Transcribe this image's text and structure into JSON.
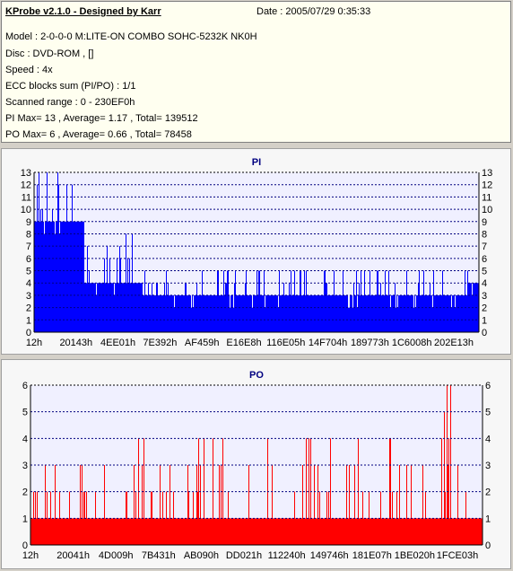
{
  "info": {
    "title": "KProbe v2.1.0 - Designed by Karr",
    "date": "Date : 2005/07/29 0:35:33",
    "lines": [
      "Model : 2-0-0-0 M:LITE-ON COMBO SOHC-5232K NK0H",
      "Disc : DVD-ROM ,  []",
      "Speed : 4x",
      "ECC blocks sum (PI/PO) : 1/1",
      "Scanned range : 0 - 230EF0h",
      "PI Max= 13 , Average= 1.17 , Total= 139512",
      "PO Max= 6 , Average= 0.66 , Total= 78458"
    ]
  },
  "colors": {
    "pi": "#0000ff",
    "po": "#ff0000",
    "plot_bg": "#f0f0ff",
    "grid": "#000080"
  },
  "chart_data": [
    {
      "type": "bar",
      "title": "PI",
      "ylim": [
        0,
        13
      ],
      "yticks": [
        0,
        1,
        2,
        3,
        4,
        5,
        6,
        7,
        8,
        9,
        10,
        11,
        12,
        13
      ],
      "xlim": [
        0,
        2289392
      ],
      "xtick_labels": [
        "12h",
        "20143h",
        "4EE01h",
        "7E392h",
        "AF459h",
        "E16E8h",
        "116E05h",
        "14F704h",
        "189773h",
        "1C6008h",
        "202E13h"
      ],
      "series": [
        {
          "segments": [
            {
              "x_range": [
                0,
                260000
              ],
              "max": 13,
              "base": 9
            },
            {
              "x_range": [
                260000,
                560000
              ],
              "max": 8,
              "base": 4
            },
            {
              "x_range": [
                560000,
                2230000
              ],
              "max": 5,
              "base": 3
            },
            {
              "x_range": [
                2230000,
                2289392
              ],
              "max": 6,
              "base": 4
            }
          ]
        }
      ]
    },
    {
      "type": "bar",
      "title": "PO",
      "ylim": [
        0,
        6
      ],
      "yticks": [
        0,
        1,
        2,
        3,
        4,
        5,
        6
      ],
      "xlim": [
        0,
        2289392
      ],
      "xtick_labels": [
        "12h",
        "20041h",
        "4D009h",
        "7B431h",
        "AB090h",
        "DD021h",
        "112240h",
        "149746h",
        "181E07h",
        "1BE020h",
        "1FCE03h"
      ],
      "series": [
        {
          "segments": [
            {
              "x_range": [
                0,
                2000000
              ],
              "max": 4,
              "base": 1
            },
            {
              "x_range": [
                2000000,
                2289392
              ],
              "max": 6,
              "base": 1
            }
          ]
        }
      ]
    }
  ]
}
